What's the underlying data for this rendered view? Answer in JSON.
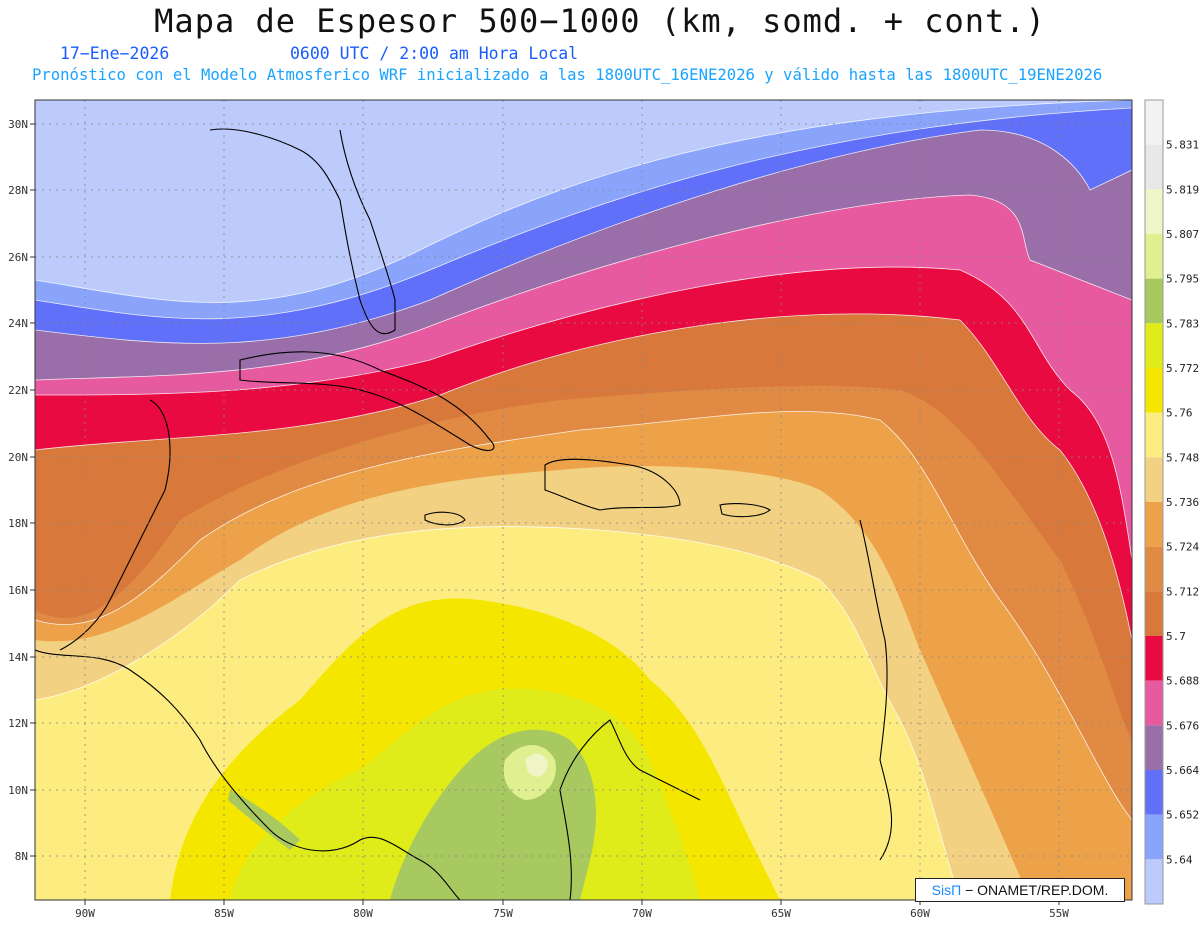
{
  "header": {
    "title": "Mapa de Espesor 500−1000 (km, somd. + cont.)",
    "date": "17−Ene−2026",
    "time": "0600 UTC / 2:00 am Hora Local",
    "forecast": "Pronóstico con el Modelo Atmosferico WRF inicializado a las 1800UTC_16ENE2026 y válido hasta las  1800UTC_19ENE2026"
  },
  "map": {
    "lat_labels": [
      "30N",
      "28N",
      "26N",
      "24N",
      "22N",
      "20N",
      "18N",
      "16N",
      "14N",
      "12N",
      "10N",
      "8N"
    ],
    "lon_labels": [
      "90W",
      "85W",
      "80W",
      "75W",
      "70W",
      "65W",
      "60W",
      "55W"
    ]
  },
  "colorbar": {
    "labels": [
      "5.831",
      "5.819",
      "5.807",
      "5.795",
      "5.783",
      "5.772",
      "5.76",
      "5.748",
      "5.736",
      "5.724",
      "5.712",
      "5.7",
      "5.688",
      "5.676",
      "5.664",
      "5.652",
      "5.64"
    ],
    "colors": [
      "#e8e8e8",
      "#f0f5c8",
      "#e0f090",
      "#a8c860",
      "#e0ec1a",
      "#f5e600",
      "#fded80",
      "#f2d282",
      "#eda24a",
      "#e08a44",
      "#d8783a",
      "#ea0a42",
      "#e75aa0",
      "#9a6ea8",
      "#6070f8",
      "#8aa4fc",
      "#bccbfc"
    ]
  },
  "credit": {
    "brand": "SisΠ",
    "text": "− ONAMET/REP.DOM."
  }
}
